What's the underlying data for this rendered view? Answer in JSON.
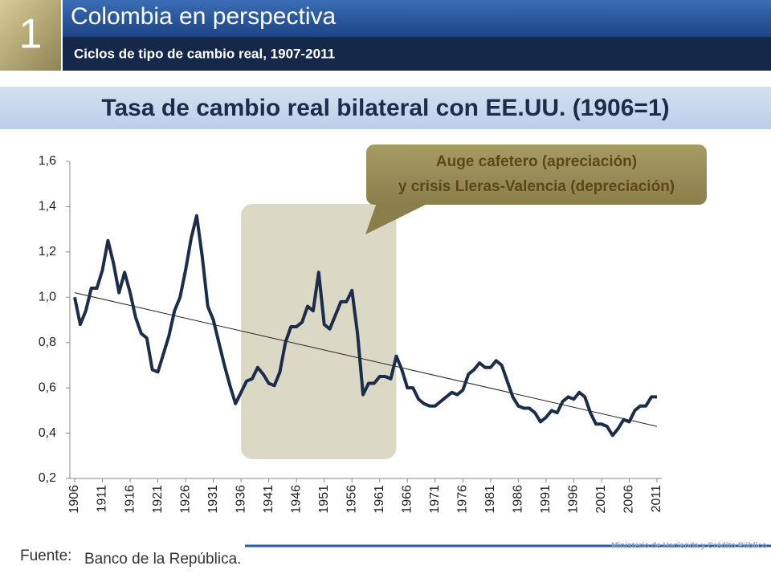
{
  "slide": {
    "number": "1",
    "heading": "Colombia en perspectiva",
    "subheading": "Ciclos de tipo de cambio real, 1907-2011",
    "source_label": "Fuente:",
    "source": "Banco de la República.",
    "ministry": "Ministerio de Hacienda y Crédito Público"
  },
  "chart_data": {
    "type": "line",
    "title": "Tasa de cambio real bilateral con EE.UU. (1906=1)",
    "annotation": [
      "Auge cafetero (apreciación)",
      "y crisis Lleras-Valencia (depreciación)"
    ],
    "highlight_range": [
      1936,
      1964
    ],
    "trendline": {
      "x": [
        1906,
        2011
      ],
      "values": [
        1.02,
        0.43
      ]
    },
    "xlim": [
      1906,
      2011
    ],
    "ylim": [
      0.2,
      1.6
    ],
    "xticks": [
      1906,
      1911,
      1916,
      1921,
      1926,
      1931,
      1936,
      1941,
      1946,
      1951,
      1956,
      1961,
      1966,
      1971,
      1976,
      1981,
      1986,
      1991,
      1996,
      2001,
      2006,
      2011
    ],
    "yticks": [
      {
        "value": 0.2,
        "label": "0,2"
      },
      {
        "value": 0.4,
        "label": "0,4"
      },
      {
        "value": 0.6,
        "label": "0,6"
      },
      {
        "value": 0.8,
        "label": "0,8"
      },
      {
        "value": 1.0,
        "label": "1,0"
      },
      {
        "value": 1.2,
        "label": "1,2"
      },
      {
        "value": 1.4,
        "label": "1,4"
      },
      {
        "value": 1.6,
        "label": "1,6"
      }
    ],
    "x": [
      1906,
      1907,
      1908,
      1909,
      1910,
      1911,
      1912,
      1913,
      1914,
      1915,
      1916,
      1917,
      1918,
      1919,
      1920,
      1921,
      1922,
      1923,
      1924,
      1925,
      1926,
      1927,
      1928,
      1929,
      1930,
      1931,
      1932,
      1933,
      1934,
      1935,
      1936,
      1937,
      1938,
      1939,
      1940,
      1941,
      1942,
      1943,
      1944,
      1945,
      1946,
      1947,
      1948,
      1949,
      1950,
      1951,
      1952,
      1953,
      1954,
      1955,
      1956,
      1957,
      1958,
      1959,
      1960,
      1961,
      1962,
      1963,
      1964,
      1965,
      1966,
      1967,
      1968,
      1969,
      1970,
      1971,
      1972,
      1973,
      1974,
      1975,
      1976,
      1977,
      1978,
      1979,
      1980,
      1981,
      1982,
      1983,
      1984,
      1985,
      1986,
      1987,
      1988,
      1989,
      1990,
      1991,
      1992,
      1993,
      1994,
      1995,
      1996,
      1997,
      1998,
      1999,
      2000,
      2001,
      2002,
      2003,
      2004,
      2005,
      2006,
      2007,
      2008,
      2009,
      2010,
      2011
    ],
    "series": [
      {
        "color": "#1c2d4a",
        "values": [
          1.0,
          0.88,
          0.94,
          1.04,
          1.04,
          1.12,
          1.25,
          1.15,
          1.02,
          1.11,
          1.02,
          0.91,
          0.84,
          0.82,
          0.68,
          0.67,
          0.75,
          0.83,
          0.94,
          1.0,
          1.12,
          1.26,
          1.36,
          1.18,
          0.96,
          0.9,
          0.8,
          0.7,
          0.61,
          0.53,
          0.58,
          0.63,
          0.64,
          0.69,
          0.66,
          0.62,
          0.61,
          0.67,
          0.8,
          0.87,
          0.87,
          0.89,
          0.96,
          0.94,
          1.11,
          0.88,
          0.86,
          0.92,
          0.98,
          0.98,
          1.03,
          0.84,
          0.57,
          0.62,
          0.62,
          0.65,
          0.65,
          0.64,
          0.74,
          0.68,
          0.6,
          0.6,
          0.55,
          0.53,
          0.52,
          0.52,
          0.54,
          0.56,
          0.58,
          0.57,
          0.59,
          0.66,
          0.68,
          0.71,
          0.69,
          0.69,
          0.72,
          0.7,
          0.63,
          0.56,
          0.52,
          0.51,
          0.51,
          0.49,
          0.45,
          0.47,
          0.5,
          0.49,
          0.54,
          0.56,
          0.55,
          0.58,
          0.56,
          0.49,
          0.44,
          0.44,
          0.43,
          0.39,
          0.42,
          0.46,
          0.45,
          0.5,
          0.52,
          0.52,
          0.56,
          0.56
        ]
      }
    ]
  }
}
